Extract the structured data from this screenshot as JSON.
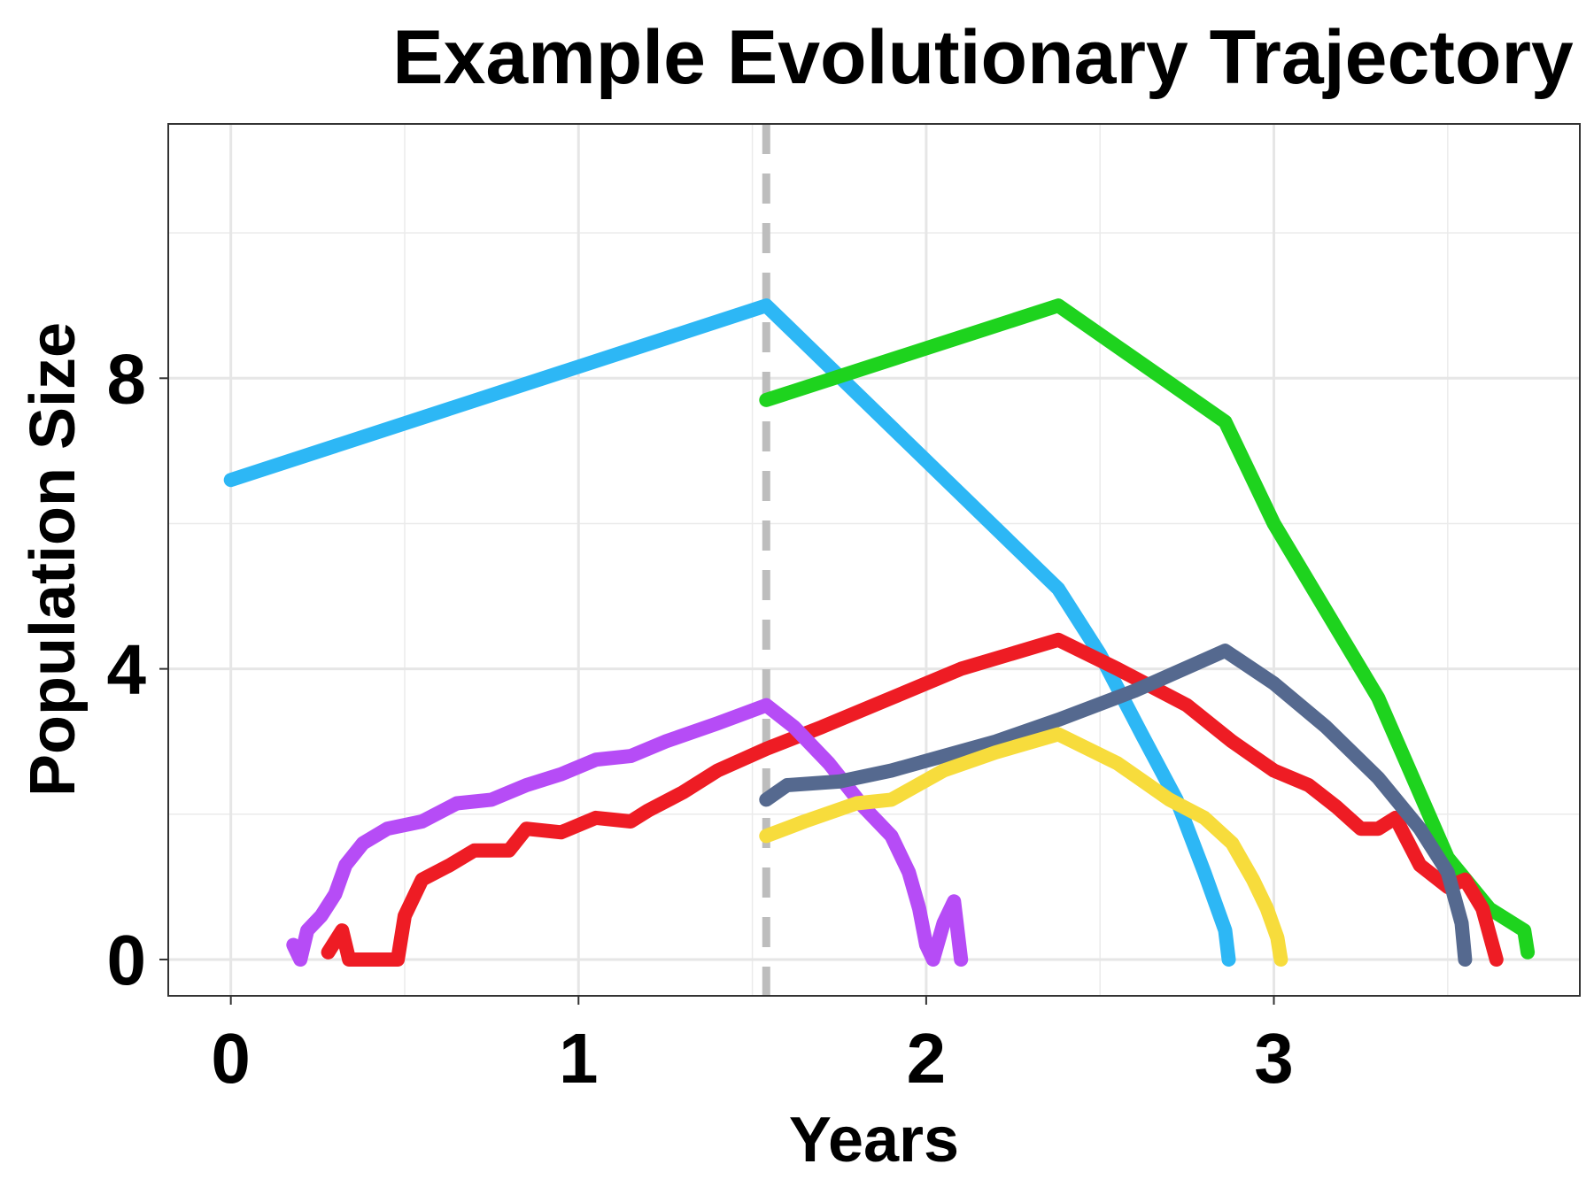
{
  "chart_data": {
    "type": "line",
    "title": "Example Evolutionary Trajectory",
    "xlabel": "Years",
    "ylabel": "Population Size",
    "xlim": [
      -0.18,
      3.88
    ],
    "ylim": [
      -0.5,
      11.5
    ],
    "x_ticks": [
      0,
      1,
      2,
      3
    ],
    "x_tick_labels": [
      "0",
      "1",
      "2",
      "3"
    ],
    "y_ticks": [
      0,
      4,
      8
    ],
    "y_tick_labels": [
      "0",
      "4",
      "8"
    ],
    "grid": true,
    "legend": "none",
    "reference_line": {
      "x": 1.54,
      "style": "dashed",
      "color": "#bdbdbd"
    },
    "series": [
      {
        "color": "#2db7f5",
        "points": [
          [
            0.0,
            6.6
          ],
          [
            1.54,
            9.0
          ],
          [
            2.38,
            5.1
          ],
          [
            2.5,
            4.2
          ],
          [
            2.62,
            3.1
          ],
          [
            2.72,
            2.2
          ],
          [
            2.8,
            1.2
          ],
          [
            2.86,
            0.4
          ],
          [
            2.87,
            0.0
          ]
        ]
      },
      {
        "color": "#1ed31e",
        "points": [
          [
            1.54,
            7.7
          ],
          [
            2.38,
            9.0
          ],
          [
            2.86,
            7.4
          ],
          [
            3.0,
            6.0
          ],
          [
            3.3,
            3.6
          ],
          [
            3.5,
            1.4
          ],
          [
            3.62,
            0.7
          ],
          [
            3.72,
            0.4
          ],
          [
            3.73,
            0.1
          ]
        ]
      },
      {
        "color": "#ee1c24",
        "points": [
          [
            0.28,
            0.1
          ],
          [
            0.32,
            0.4
          ],
          [
            0.34,
            0.0
          ],
          [
            0.48,
            0.0
          ],
          [
            0.5,
            0.6
          ],
          [
            0.55,
            1.1
          ],
          [
            0.63,
            1.3
          ],
          [
            0.7,
            1.5
          ],
          [
            0.8,
            1.5
          ],
          [
            0.85,
            1.8
          ],
          [
            0.95,
            1.75
          ],
          [
            1.05,
            1.95
          ],
          [
            1.15,
            1.9
          ],
          [
            1.2,
            2.05
          ],
          [
            1.3,
            2.3
          ],
          [
            1.4,
            2.6
          ],
          [
            1.54,
            2.9
          ],
          [
            1.7,
            3.2
          ],
          [
            1.9,
            3.6
          ],
          [
            2.1,
            4.0
          ],
          [
            2.38,
            4.4
          ],
          [
            2.55,
            4.0
          ],
          [
            2.75,
            3.5
          ],
          [
            2.88,
            3.0
          ],
          [
            3.0,
            2.6
          ],
          [
            3.1,
            2.4
          ],
          [
            3.18,
            2.1
          ],
          [
            3.25,
            1.8
          ],
          [
            3.3,
            1.8
          ],
          [
            3.35,
            1.95
          ],
          [
            3.42,
            1.3
          ],
          [
            3.5,
            1.0
          ],
          [
            3.55,
            1.1
          ],
          [
            3.6,
            0.7
          ],
          [
            3.64,
            0.0
          ]
        ]
      },
      {
        "color": "#b64cf6",
        "points": [
          [
            0.18,
            0.2
          ],
          [
            0.2,
            0.0
          ],
          [
            0.22,
            0.4
          ],
          [
            0.26,
            0.6
          ],
          [
            0.3,
            0.9
          ],
          [
            0.33,
            1.3
          ],
          [
            0.38,
            1.6
          ],
          [
            0.45,
            1.8
          ],
          [
            0.55,
            1.9
          ],
          [
            0.65,
            2.15
          ],
          [
            0.75,
            2.2
          ],
          [
            0.85,
            2.4
          ],
          [
            0.95,
            2.55
          ],
          [
            1.05,
            2.75
          ],
          [
            1.15,
            2.8
          ],
          [
            1.25,
            3.0
          ],
          [
            1.4,
            3.25
          ],
          [
            1.54,
            3.5
          ],
          [
            1.62,
            3.2
          ],
          [
            1.72,
            2.7
          ],
          [
            1.82,
            2.1
          ],
          [
            1.9,
            1.7
          ],
          [
            1.95,
            1.2
          ],
          [
            1.98,
            0.7
          ],
          [
            2.0,
            0.2
          ],
          [
            2.02,
            0.0
          ],
          [
            2.05,
            0.5
          ],
          [
            2.08,
            0.8
          ],
          [
            2.1,
            0.0
          ]
        ]
      },
      {
        "color": "#55698f",
        "points": [
          [
            1.54,
            2.2
          ],
          [
            1.6,
            2.4
          ],
          [
            1.75,
            2.45
          ],
          [
            1.9,
            2.6
          ],
          [
            2.05,
            2.8
          ],
          [
            2.2,
            3.0
          ],
          [
            2.38,
            3.3
          ],
          [
            2.6,
            3.7
          ],
          [
            2.86,
            4.25
          ],
          [
            3.0,
            3.8
          ],
          [
            3.15,
            3.2
          ],
          [
            3.3,
            2.5
          ],
          [
            3.42,
            1.8
          ],
          [
            3.5,
            1.2
          ],
          [
            3.54,
            0.5
          ],
          [
            3.55,
            0.0
          ]
        ]
      },
      {
        "color": "#f7dc3c",
        "points": [
          [
            1.54,
            1.7
          ],
          [
            1.65,
            1.9
          ],
          [
            1.8,
            2.15
          ],
          [
            1.9,
            2.2
          ],
          [
            2.05,
            2.6
          ],
          [
            2.2,
            2.85
          ],
          [
            2.38,
            3.1
          ],
          [
            2.55,
            2.7
          ],
          [
            2.7,
            2.2
          ],
          [
            2.8,
            1.95
          ],
          [
            2.88,
            1.6
          ],
          [
            2.94,
            1.1
          ],
          [
            2.98,
            0.7
          ],
          [
            3.01,
            0.3
          ],
          [
            3.02,
            0.0
          ]
        ]
      }
    ]
  }
}
